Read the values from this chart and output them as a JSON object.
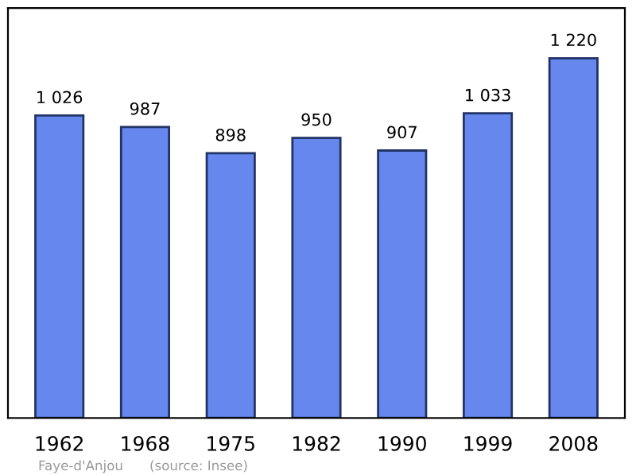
{
  "chart_data": {
    "type": "bar",
    "categories": [
      "1962",
      "1968",
      "1975",
      "1982",
      "1990",
      "1999",
      "2008"
    ],
    "values": [
      1026,
      987,
      898,
      950,
      907,
      1033,
      1220
    ],
    "value_labels": [
      "1 026",
      "987",
      "898",
      "950",
      "907",
      "1 033",
      "1 220"
    ],
    "color": "#6688ee",
    "ylim": [
      0,
      1390
    ],
    "grid": false,
    "tick_labels": "x",
    "annotations": [
      "Faye-d'Anjou",
      "(source: Insee)"
    ]
  }
}
